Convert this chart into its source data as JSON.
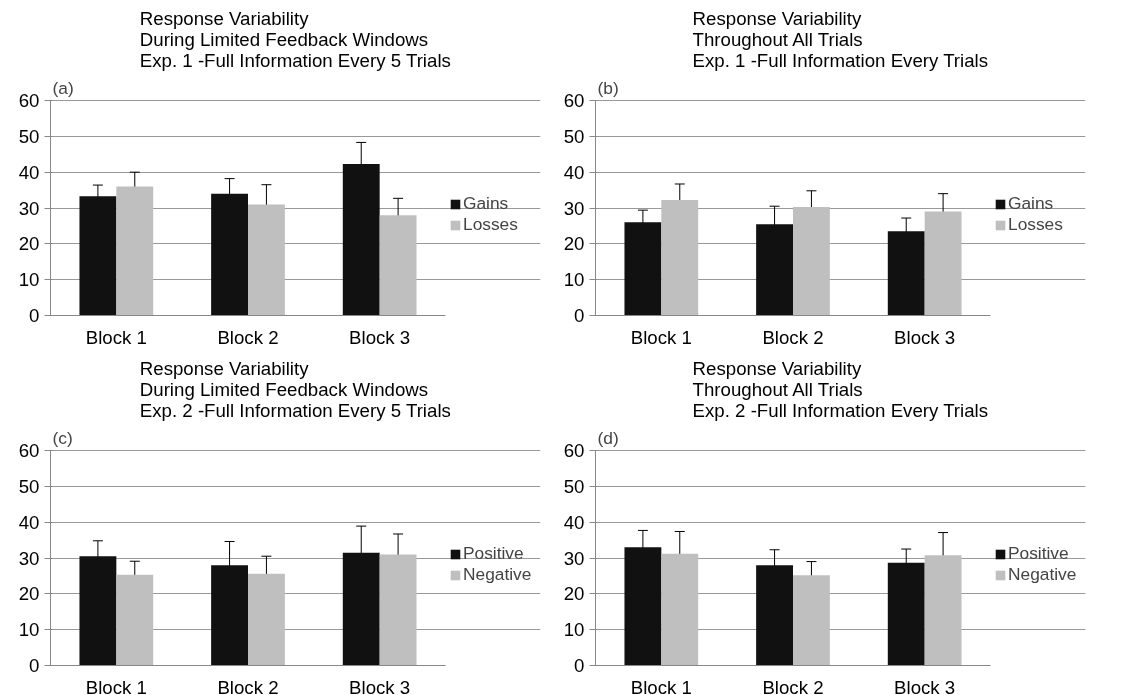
{
  "chart_data": [
    {
      "type": "bar",
      "title": "Response Variability\nDuring Limited Feedback Windows\nExp. 1 -Full Information Every 5 Trials",
      "annotations": [
        "(a)"
      ],
      "categories": [
        "Block 1",
        "Block 2",
        "Block 3"
      ],
      "ylim": [
        0,
        60
      ],
      "yticks": [
        0,
        10,
        20,
        30,
        40,
        50,
        60
      ],
      "grid": "y",
      "legend": "right",
      "series": [
        {
          "name": "Gains",
          "color": "#111111",
          "values": [
            33.3,
            34,
            42.3
          ],
          "errors": [
            3.1,
            4.2,
            6
          ]
        },
        {
          "name": "Losses",
          "color": "#bfbfbf",
          "values": [
            36,
            31,
            28
          ],
          "errors": [
            4,
            5.5,
            4.7
          ]
        }
      ]
    },
    {
      "type": "bar",
      "title": "Response Variability\nThroughout All Trials\nExp. 1 -Full Information Every Trials",
      "annotations": [
        "(b)"
      ],
      "categories": [
        "Block 1",
        "Block 2",
        "Block 3"
      ],
      "ylim": [
        0,
        60
      ],
      "yticks": [
        0,
        10,
        20,
        30,
        40,
        50,
        60
      ],
      "grid": "y",
      "legend": "right",
      "series": [
        {
          "name": "Gains",
          "color": "#111111",
          "values": [
            26,
            25.5,
            23.5
          ],
          "errors": [
            3.4,
            5,
            3.7
          ]
        },
        {
          "name": "Losses",
          "color": "#bfbfbf",
          "values": [
            32.2,
            30.3,
            29
          ],
          "errors": [
            4.5,
            4.5,
            5
          ]
        }
      ]
    },
    {
      "type": "bar",
      "title": "Response Variability\nDuring Limited Feedback Windows\nExp. 2 -Full Information Every 5 Trials",
      "annotations": [
        "(c)"
      ],
      "categories": [
        "Block 1",
        "Block 2",
        "Block 3"
      ],
      "ylim": [
        0,
        60
      ],
      "yticks": [
        0,
        10,
        20,
        30,
        40,
        50,
        60
      ],
      "grid": "y",
      "legend": "right",
      "series": [
        {
          "name": "Positive",
          "color": "#111111",
          "values": [
            30.5,
            28,
            31.5
          ],
          "errors": [
            4.3,
            6.6,
            7.4
          ]
        },
        {
          "name": "Negative",
          "color": "#bfbfbf",
          "values": [
            25.3,
            25.6,
            31
          ],
          "errors": [
            3.8,
            4.9,
            5.7
          ]
        }
      ]
    },
    {
      "type": "bar",
      "title": "Response Variability\nThroughout All Trials\nExp. 2 -Full Information Every Trials",
      "annotations": [
        "(d)"
      ],
      "categories": [
        "Block 1",
        "Block 2",
        "Block 3"
      ],
      "ylim": [
        0,
        60
      ],
      "yticks": [
        0,
        10,
        20,
        30,
        40,
        50,
        60
      ],
      "grid": "y",
      "legend": "right",
      "series": [
        {
          "name": "Positive",
          "color": "#111111",
          "values": [
            33,
            28,
            28.7
          ],
          "errors": [
            4.7,
            4.3,
            3.8
          ]
        },
        {
          "name": "Negative",
          "color": "#bfbfbf",
          "values": [
            31.2,
            25.2,
            30.8
          ],
          "errors": [
            6.2,
            3.8,
            6.3
          ]
        }
      ]
    }
  ]
}
